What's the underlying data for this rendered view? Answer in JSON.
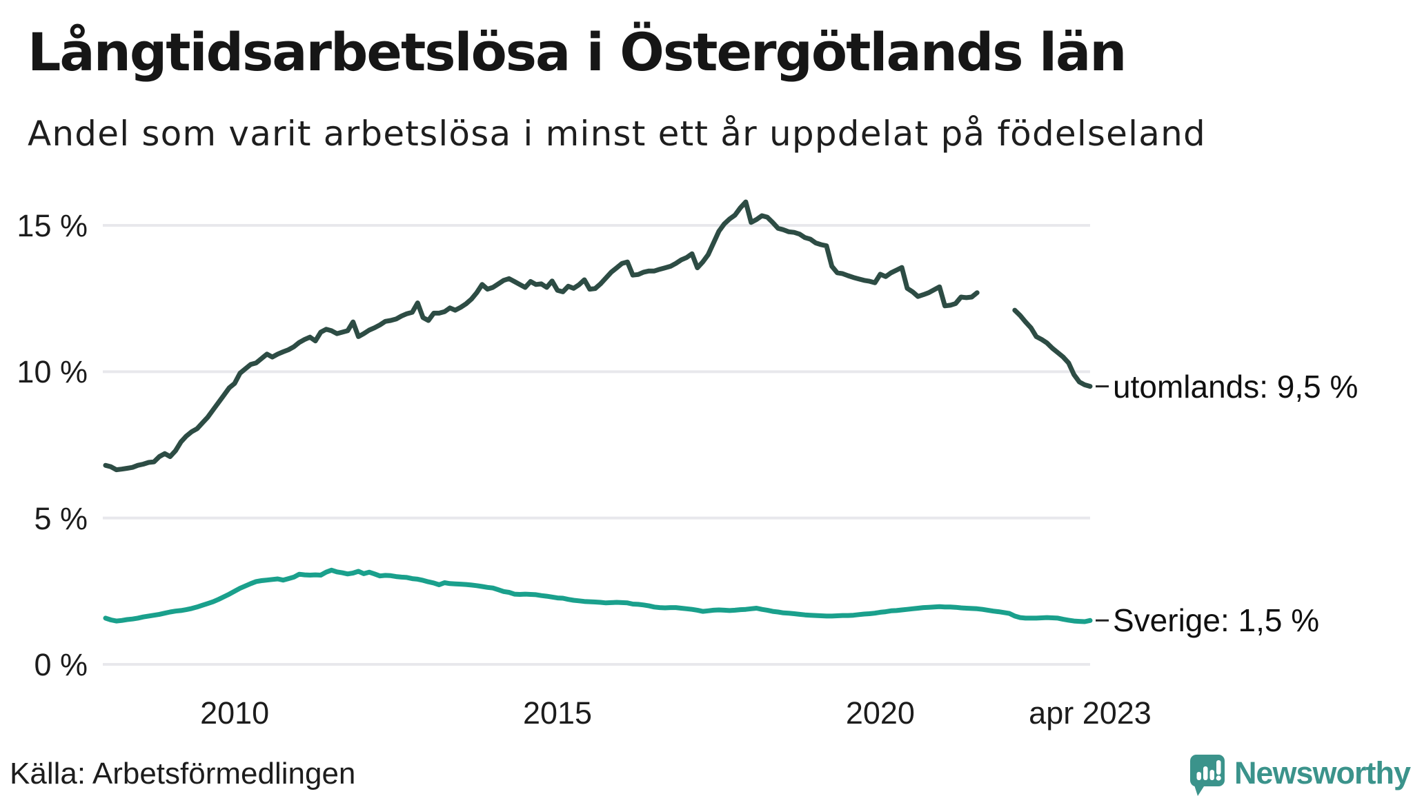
{
  "title": "Långtidsarbetslösa i Östergötlands län",
  "subtitle": "Andel som varit arbetslösa i minst ett år uppdelat på födelseland",
  "source": "Källa: Arbetsförmedlingen",
  "branding": {
    "name": "Newsworthy",
    "color": "#3b938b",
    "icon": "newsworthy-speech-bubble-bar-chart"
  },
  "chart_data": {
    "type": "line",
    "unit": "%",
    "frequency": "monthly",
    "x_start": {
      "year": 2008,
      "month": 1
    },
    "x_end": {
      "year": 2023,
      "month": 4
    },
    "grid": true,
    "ylim": [
      0,
      16.6
    ],
    "y_ticks": [
      {
        "label": "15 %",
        "value": 15
      },
      {
        "label": "10 %",
        "value": 10
      },
      {
        "label": "5 %",
        "value": 5
      },
      {
        "label": "0 %",
        "value": 0
      }
    ],
    "x_ticks": [
      {
        "label": "2010",
        "year": 2010,
        "month": 1
      },
      {
        "label": "2015",
        "year": 2015,
        "month": 1
      },
      {
        "label": "2020",
        "year": 2020,
        "month": 1
      },
      {
        "label": "apr 2023",
        "year": 2023,
        "month": 4
      }
    ],
    "series": [
      {
        "name": "utomlands",
        "end_label": "utomlands: 9,5 %",
        "color": "#2d4c44",
        "values": [
          6.8,
          6.75,
          6.65,
          6.67,
          6.7,
          6.73,
          6.8,
          6.84,
          6.9,
          6.92,
          7.1,
          7.2,
          7.1,
          7.3,
          7.6,
          7.8,
          7.95,
          8.05,
          8.25,
          8.45,
          8.7,
          8.95,
          9.2,
          9.45,
          9.6,
          9.95,
          10.1,
          10.25,
          10.3,
          10.45,
          10.6,
          10.5,
          10.6,
          10.68,
          10.75,
          10.85,
          11.0,
          11.1,
          11.18,
          11.05,
          11.35,
          11.45,
          11.4,
          11.3,
          11.35,
          11.4,
          11.7,
          11.2,
          11.3,
          11.42,
          11.5,
          11.6,
          11.72,
          11.75,
          11.8,
          11.9,
          11.98,
          12.03,
          12.35,
          11.85,
          11.75,
          12.0,
          12.0,
          12.05,
          12.18,
          12.1,
          12.2,
          12.32,
          12.48,
          12.7,
          12.98,
          12.82,
          12.88,
          13.0,
          13.12,
          13.18,
          13.08,
          12.98,
          12.88,
          13.08,
          12.98,
          13.0,
          12.88,
          13.1,
          12.78,
          12.73,
          12.92,
          12.85,
          12.97,
          13.14,
          12.82,
          12.84,
          13.0,
          13.2,
          13.4,
          13.55,
          13.7,
          13.75,
          13.3,
          13.32,
          13.4,
          13.44,
          13.44,
          13.5,
          13.55,
          13.6,
          13.7,
          13.82,
          13.9,
          14.03,
          13.55,
          13.75,
          14.0,
          14.4,
          14.8,
          15.05,
          15.22,
          15.35,
          15.6,
          15.8,
          15.1,
          15.2,
          15.33,
          15.28,
          15.1,
          14.9,
          14.85,
          14.78,
          14.76,
          14.7,
          14.58,
          14.53,
          14.4,
          14.34,
          14.3,
          13.6,
          13.38,
          13.35,
          13.28,
          13.22,
          13.17,
          13.12,
          13.09,
          13.04,
          13.33,
          13.25,
          13.38,
          13.47,
          13.56,
          12.85,
          12.73,
          12.57,
          12.63,
          12.7,
          12.8,
          12.9,
          12.25,
          12.27,
          12.33,
          12.55,
          12.53,
          12.55,
          12.7,
          null,
          null,
          null,
          null,
          null,
          null,
          12.1,
          11.92,
          11.7,
          11.5,
          11.2,
          11.1,
          10.98,
          10.8,
          10.65,
          10.5,
          10.3,
          9.9,
          9.65,
          9.55,
          9.5
        ]
      },
      {
        "name": "Sverige",
        "end_label": "Sverige: 1,5 %",
        "color": "#1aa08c",
        "values": [
          1.58,
          1.52,
          1.48,
          1.5,
          1.53,
          1.55,
          1.58,
          1.62,
          1.65,
          1.68,
          1.71,
          1.75,
          1.79,
          1.82,
          1.84,
          1.87,
          1.91,
          1.96,
          2.02,
          2.08,
          2.14,
          2.22,
          2.31,
          2.4,
          2.5,
          2.6,
          2.68,
          2.76,
          2.83,
          2.86,
          2.88,
          2.9,
          2.92,
          2.88,
          2.93,
          2.98,
          3.08,
          3.06,
          3.05,
          3.06,
          3.05,
          3.15,
          3.22,
          3.16,
          3.13,
          3.09,
          3.12,
          3.18,
          3.1,
          3.15,
          3.09,
          3.02,
          3.04,
          3.03,
          3.0,
          2.98,
          2.97,
          2.93,
          2.91,
          2.87,
          2.82,
          2.78,
          2.72,
          2.79,
          2.76,
          2.75,
          2.74,
          2.73,
          2.71,
          2.69,
          2.66,
          2.63,
          2.61,
          2.55,
          2.49,
          2.46,
          2.4,
          2.39,
          2.4,
          2.39,
          2.38,
          2.35,
          2.33,
          2.3,
          2.27,
          2.26,
          2.22,
          2.19,
          2.17,
          2.15,
          2.14,
          2.13,
          2.12,
          2.1,
          2.11,
          2.12,
          2.11,
          2.1,
          2.06,
          2.05,
          2.03,
          2.0,
          1.96,
          1.94,
          1.93,
          1.94,
          1.94,
          1.92,
          1.9,
          1.88,
          1.85,
          1.81,
          1.83,
          1.85,
          1.86,
          1.85,
          1.84,
          1.85,
          1.87,
          1.88,
          1.9,
          1.92,
          1.88,
          1.85,
          1.81,
          1.79,
          1.76,
          1.75,
          1.73,
          1.71,
          1.69,
          1.68,
          1.67,
          1.66,
          1.65,
          1.65,
          1.66,
          1.67,
          1.67,
          1.68,
          1.7,
          1.72,
          1.73,
          1.75,
          1.78,
          1.8,
          1.83,
          1.84,
          1.86,
          1.88,
          1.9,
          1.92,
          1.94,
          1.95,
          1.96,
          1.97,
          1.96,
          1.96,
          1.95,
          1.93,
          1.92,
          1.91,
          1.9,
          1.88,
          1.85,
          1.82,
          1.8,
          1.77,
          1.74,
          1.65,
          1.6,
          1.58,
          1.58,
          1.58,
          1.59,
          1.6,
          1.59,
          1.58,
          1.54,
          1.51,
          1.48,
          1.47,
          1.46,
          1.5
        ]
      }
    ],
    "gridline_color": "#e8e8ec",
    "leader_dash_color": "#222222"
  }
}
